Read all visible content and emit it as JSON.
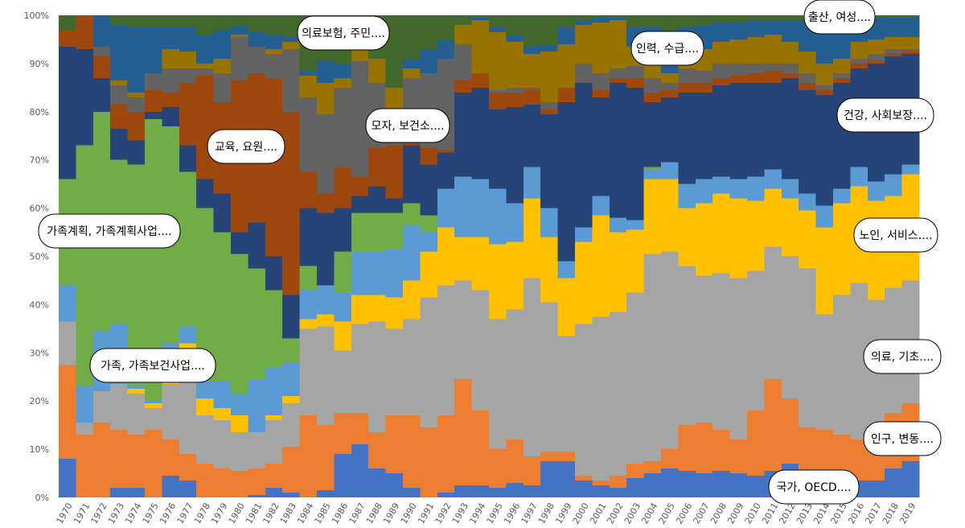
{
  "chart_data": {
    "type": "stacked-area-percent",
    "categories": [
      "1970",
      "1971",
      "1972",
      "1973",
      "1974",
      "1975",
      "1976",
      "1977",
      "1978",
      "1979",
      "1980",
      "1981",
      "1982",
      "1983",
      "1984",
      "1985",
      "1986",
      "1987",
      "1988",
      "1989",
      "1990",
      "1991",
      "1992",
      "1993",
      "1994",
      "1995",
      "1996",
      "1997",
      "1998",
      "1999",
      "2000",
      "2001",
      "2002",
      "2003",
      "2004",
      "2005",
      "2006",
      "2007",
      "2008",
      "2009",
      "2010",
      "2011",
      "2012",
      "2013",
      "2014",
      "2015",
      "2016",
      "2017",
      "2018",
      "2019"
    ],
    "ylim": [
      0,
      100
    ],
    "yticks": [
      {
        "value": 0,
        "label": "0%"
      },
      {
        "value": 10,
        "label": "10%"
      },
      {
        "value": 20,
        "label": "20%"
      },
      {
        "value": 30,
        "label": "30%"
      },
      {
        "value": 40,
        "label": "40%"
      },
      {
        "value": 50,
        "label": "50%"
      },
      {
        "value": 60,
        "label": "60%"
      },
      {
        "value": 70,
        "label": "70%"
      },
      {
        "value": 80,
        "label": "80%"
      },
      {
        "value": 90,
        "label": "90%"
      },
      {
        "value": 100,
        "label": "100%"
      }
    ],
    "series": [
      {
        "name": "국가, OECD....",
        "color": "#4472c4",
        "values": [
          8,
          0,
          0,
          2,
          2,
          0,
          4.5,
          3.5,
          0,
          0,
          0,
          0.5,
          2,
          1,
          0,
          1.5,
          9,
          11,
          6,
          5,
          2,
          0,
          1,
          2.5,
          2.5,
          2,
          3,
          2.5,
          7.5,
          7.5,
          3.5,
          2.5,
          2,
          4,
          5,
          6,
          5.5,
          5,
          5.5,
          5,
          4.5,
          5.5,
          7,
          4,
          3.5,
          3.5,
          3.5,
          3.5,
          6,
          7.5
        ]
      },
      {
        "name": "인구, 변동....",
        "color": "#ed7d31",
        "values": [
          19.5,
          13,
          15.5,
          12,
          11,
          14,
          7.5,
          5.5,
          7,
          6,
          5.5,
          5.5,
          5,
          9.5,
          17,
          13.5,
          8.5,
          6.5,
          7.5,
          12,
          15,
          14.5,
          16,
          22,
          15.5,
          8,
          9,
          6,
          2,
          2,
          1,
          1,
          2.5,
          3,
          2.5,
          4,
          9.5,
          10.5,
          8.5,
          7,
          13.5,
          19,
          13.5,
          10.5,
          10.5,
          9.5,
          8.5,
          9.5,
          11.5,
          12
        ]
      },
      {
        "name": "의료, 기초....",
        "color": "#a5a5a5",
        "values": [
          9,
          2.5,
          6.5,
          9.5,
          8.5,
          4.5,
          11.5,
          21.5,
          10,
          10,
          8,
          7.5,
          9,
          9,
          18,
          20.5,
          13,
          18.5,
          23,
          18,
          20,
          27,
          27,
          20.5,
          25,
          27,
          27,
          37,
          31,
          24,
          31.5,
          34,
          34,
          35.5,
          43,
          41,
          33,
          30.5,
          32.5,
          33.5,
          29,
          27.5,
          29.5,
          33,
          24,
          29,
          32.5,
          28,
          26,
          25.5
        ]
      },
      {
        "name": "노인, 서비스....",
        "color": "#ffc000",
        "values": [
          0,
          0,
          0,
          0,
          1,
          1,
          0.5,
          1.5,
          3.5,
          2.5,
          3.5,
          0,
          1,
          1.5,
          2,
          2.5,
          6,
          6,
          5.5,
          6.5,
          8,
          9.5,
          12,
          9,
          11,
          15.5,
          14,
          16.5,
          13.5,
          12,
          17,
          21,
          16.5,
          13,
          15.5,
          15,
          12,
          15,
          16.5,
          16.5,
          14.5,
          12,
          12,
          12,
          18,
          19,
          20,
          20.5,
          19,
          22
        ]
      },
      {
        "name": "가족, 가족보건사업....",
        "color": "#5b9bd5",
        "values": [
          7.5,
          7.5,
          12.5,
          12.5,
          0.5,
          0.5,
          8,
          3.5,
          3.5,
          5.5,
          4.5,
          11,
          10,
          7,
          6,
          6,
          6,
          9,
          9,
          10,
          11.5,
          4,
          8,
          12.5,
          12,
          11.5,
          8,
          6.5,
          6,
          3.5,
          3,
          4,
          3,
          2,
          2,
          3.5,
          5,
          5,
          3.5,
          4,
          5,
          4,
          4,
          3.5,
          4.5,
          3,
          4,
          4,
          4.5,
          2
        ]
      },
      {
        "name": "가족계획, 가족계획사업....",
        "color": "#70ad47",
        "values": [
          22,
          50,
          45.5,
          34,
          46,
          58.5,
          45,
          32,
          36,
          31,
          29,
          23,
          16,
          5,
          5,
          0,
          8.5,
          8,
          8,
          7.5,
          4.5,
          3.5,
          0,
          0,
          0,
          0,
          0,
          0,
          0,
          0,
          0,
          0,
          0,
          0,
          0.5,
          0,
          0,
          0,
          0,
          0,
          0,
          0,
          0,
          0,
          0,
          0,
          0,
          0,
          0,
          0
        ]
      },
      {
        "name": "건강, 사회보장....",
        "color": "#264478",
        "values": [
          27.5,
          20,
          7,
          6.5,
          5,
          1.5,
          4,
          5.5,
          6,
          8,
          4.5,
          9.5,
          7,
          9,
          12,
          15,
          9,
          3.5,
          5.5,
          3,
          12,
          10.5,
          7.5,
          17.5,
          19,
          16.5,
          20,
          13,
          19.5,
          33,
          30,
          20.5,
          28,
          27.5,
          13.5,
          13.5,
          19,
          18,
          19,
          20,
          19.5,
          18,
          21,
          21.5,
          23,
          22,
          20.5,
          24.5,
          24.5,
          23
        ]
      },
      {
        "name": "교육, 요원....",
        "color": "#9e480e",
        "values": [
          3.5,
          7,
          4.5,
          5,
          6,
          4.5,
          3,
          13,
          21.5,
          19,
          31.5,
          31,
          37,
          38,
          7.5,
          4,
          8.5,
          4,
          8,
          11,
          0.5,
          3.5,
          0.5,
          2.5,
          3,
          3.5,
          3,
          3,
          1,
          3,
          0,
          1.5,
          1,
          2,
          2,
          1.5,
          2,
          2,
          1.5,
          1.5,
          2,
          2.5,
          1,
          1.5,
          1,
          1,
          1,
          0.5,
          0.5,
          0.5
        ]
      },
      {
        "name": "모자, 보건소....",
        "color": "#636363",
        "values": [
          0,
          0,
          2,
          4,
          3,
          3.5,
          5,
          3,
          1.5,
          6,
          9,
          5.5,
          5,
          13,
          15.5,
          16.5,
          16.5,
          24,
          13.5,
          4,
          13.5,
          15.5,
          19,
          7.5,
          0,
          0.5,
          1,
          0.5,
          1.5,
          0,
          4,
          3.5,
          2,
          2.5,
          3,
          1.5,
          3,
          2.5,
          3,
          2.5,
          2,
          1.5,
          2,
          2,
          1,
          1,
          1,
          1.5,
          1,
          0.5
        ]
      },
      {
        "name": "인력, 수급....",
        "color": "#997300",
        "values": [
          0,
          0,
          0,
          1,
          1,
          0,
          4,
          3.5,
          1,
          3,
          0.5,
          0,
          1,
          1.5,
          4.5,
          6.5,
          2,
          4.5,
          5,
          8,
          2,
          0,
          0,
          4,
          11,
          12,
          9.5,
          7,
          10.5,
          9,
          8,
          10.5,
          10,
          4,
          3,
          2,
          3,
          4.5,
          4.5,
          5,
          5.5,
          6,
          4.5,
          4.5,
          4.5,
          3,
          3.5,
          3,
          2.5,
          2.5
        ]
      },
      {
        "name": "출산, 여성....",
        "color": "#255e91",
        "values": [
          0,
          0,
          6.5,
          11.5,
          13.5,
          9.5,
          4.5,
          5,
          6,
          6,
          2,
          3,
          3,
          1,
          1,
          4.5,
          3,
          0,
          0,
          0,
          2,
          5,
          4,
          0,
          0.5,
          1,
          1.5,
          1.5,
          1.5,
          3.5,
          1,
          1,
          0.5,
          4,
          7.5,
          9,
          5.5,
          5,
          4,
          3.5,
          3.5,
          3,
          4.5,
          6.5,
          9,
          8,
          5,
          4.5,
          4,
          4
        ]
      },
      {
        "name": "의료보험, 주민....",
        "color": "#43682b",
        "values": [
          3,
          0,
          0,
          2,
          2.5,
          2.5,
          2.5,
          2.5,
          4,
          3,
          2,
          3.5,
          4,
          4.5,
          11.5,
          9.5,
          10,
          5,
          9,
          15,
          9,
          7,
          5,
          2,
          0.5,
          2.5,
          4,
          6.5,
          6,
          2.5,
          1,
          0.5,
          0.5,
          2.5,
          2.5,
          3,
          2.5,
          2,
          1.5,
          1.5,
          1,
          1,
          1,
          1,
          1,
          1,
          0.5,
          0.5,
          0.5,
          0.5
        ]
      }
    ]
  }
}
